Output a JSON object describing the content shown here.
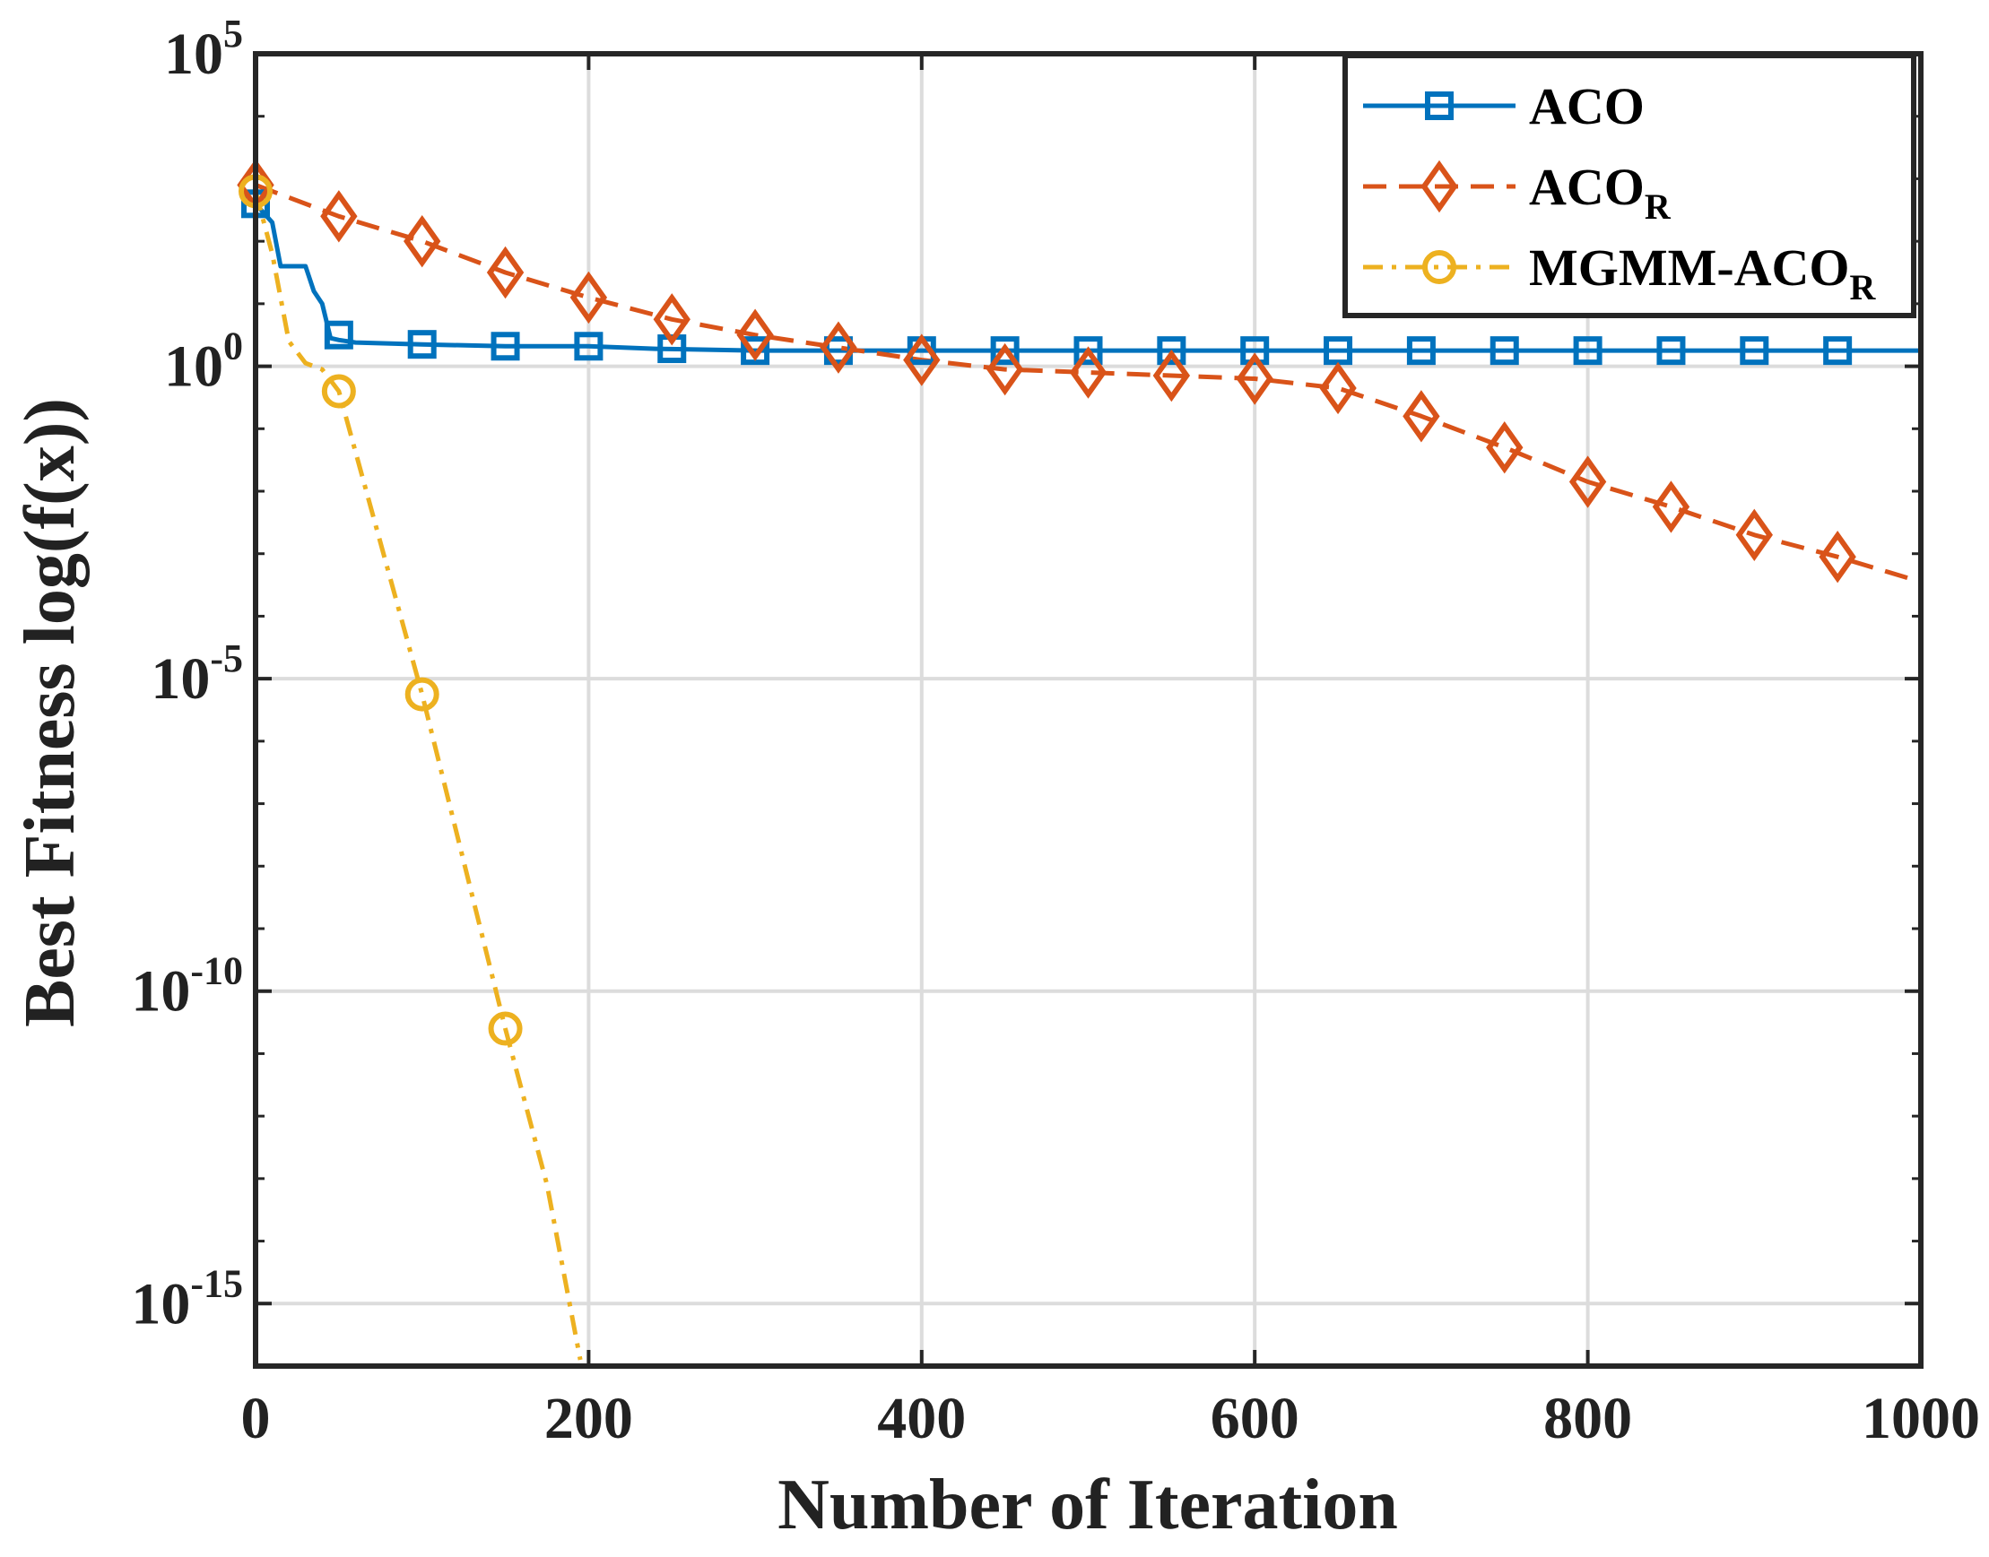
{
  "chart_data": {
    "type": "line",
    "title": "",
    "xlabel": "Number of Iteration",
    "ylabel": "Best Fitness log(f(x))",
    "xlim": [
      0,
      1000
    ],
    "ylim_log10": [
      -16,
      5
    ],
    "yscale": "log",
    "grid": true,
    "legend_position": "top-right",
    "x_ticks": [
      0,
      200,
      400,
      600,
      800,
      1000
    ],
    "x_tick_labels": [
      "0",
      "200",
      "400",
      "600",
      "800",
      "1000"
    ],
    "y_ticks_log10": [
      5,
      0,
      -5,
      -10,
      -15
    ],
    "y_tick_labels": [
      {
        "base": "10",
        "exp": "5"
      },
      {
        "base": "10",
        "exp": "0"
      },
      {
        "base": "10",
        "exp": "-5"
      },
      {
        "base": "10",
        "exp": "-10"
      },
      {
        "base": "10",
        "exp": "-15"
      }
    ],
    "series": [
      {
        "name": "ACO",
        "legend_main": "ACO",
        "legend_sub": "",
        "color": "#0072BD",
        "linestyle": "solid",
        "marker": "square",
        "line": [
          [
            0,
            2.6
          ],
          [
            10,
            2.3
          ],
          [
            15,
            1.6
          ],
          [
            30,
            1.6
          ],
          [
            35,
            1.2
          ],
          [
            40,
            1.0
          ],
          [
            45,
            0.45
          ],
          [
            50,
            0.42
          ],
          [
            60,
            0.38
          ],
          [
            100,
            0.35
          ],
          [
            150,
            0.32
          ],
          [
            200,
            0.32
          ],
          [
            240,
            0.28
          ],
          [
            300,
            0.25
          ],
          [
            1000,
            0.25
          ]
        ],
        "markers": [
          [
            0,
            2.6
          ],
          [
            50,
            0.5
          ],
          [
            100,
            0.35
          ],
          [
            150,
            0.32
          ],
          [
            200,
            0.32
          ],
          [
            250,
            0.28
          ],
          [
            300,
            0.25
          ],
          [
            350,
            0.25
          ],
          [
            400,
            0.25
          ],
          [
            450,
            0.25
          ],
          [
            500,
            0.25
          ],
          [
            550,
            0.25
          ],
          [
            600,
            0.25
          ],
          [
            650,
            0.25
          ],
          [
            700,
            0.25
          ],
          [
            750,
            0.25
          ],
          [
            800,
            0.25
          ],
          [
            850,
            0.25
          ],
          [
            900,
            0.25
          ],
          [
            950,
            0.25
          ]
        ]
      },
      {
        "name": "ACOR",
        "legend_main": "ACO",
        "legend_sub": "R",
        "color": "#D95319",
        "linestyle": "dashed",
        "marker": "diamond",
        "line": [
          [
            0,
            2.9
          ],
          [
            50,
            2.4
          ],
          [
            100,
            2.0
          ],
          [
            150,
            1.5
          ],
          [
            200,
            1.1
          ],
          [
            250,
            0.75
          ],
          [
            300,
            0.5
          ],
          [
            350,
            0.3
          ],
          [
            400,
            0.1
          ],
          [
            450,
            -0.05
          ],
          [
            500,
            -0.1
          ],
          [
            550,
            -0.15
          ],
          [
            600,
            -0.2
          ],
          [
            650,
            -0.35
          ],
          [
            700,
            -0.8
          ],
          [
            750,
            -1.3
          ],
          [
            800,
            -1.85
          ],
          [
            850,
            -2.25
          ],
          [
            900,
            -2.7
          ],
          [
            950,
            -3.05
          ],
          [
            1000,
            -3.45
          ]
        ],
        "markers": [
          [
            0,
            2.9
          ],
          [
            50,
            2.4
          ],
          [
            100,
            2.0
          ],
          [
            150,
            1.5
          ],
          [
            200,
            1.1
          ],
          [
            250,
            0.75
          ],
          [
            300,
            0.5
          ],
          [
            350,
            0.3
          ],
          [
            400,
            0.1
          ],
          [
            450,
            -0.05
          ],
          [
            500,
            -0.1
          ],
          [
            550,
            -0.15
          ],
          [
            600,
            -0.2
          ],
          [
            650,
            -0.35
          ],
          [
            700,
            -0.8
          ],
          [
            750,
            -1.3
          ],
          [
            800,
            -1.85
          ],
          [
            850,
            -2.25
          ],
          [
            900,
            -2.7
          ],
          [
            950,
            -3.05
          ]
        ]
      },
      {
        "name": "MGMM-ACOR",
        "legend_main": "MGMM-ACO",
        "legend_sub": "R",
        "color": "#EDB120",
        "linestyle": "dashdot",
        "marker": "circle",
        "line": [
          [
            0,
            2.8
          ],
          [
            10,
            1.8
          ],
          [
            20,
            0.4
          ],
          [
            30,
            0.05
          ],
          [
            40,
            -0.05
          ],
          [
            50,
            -0.4
          ],
          [
            100,
            -5.25
          ],
          [
            150,
            -10.6
          ],
          [
            175,
            -13.1
          ],
          [
            195,
            -15.9
          ]
        ],
        "markers": [
          [
            0,
            2.8
          ],
          [
            50,
            -0.4
          ],
          [
            100,
            -5.25
          ],
          [
            150,
            -10.6
          ]
        ]
      }
    ]
  }
}
